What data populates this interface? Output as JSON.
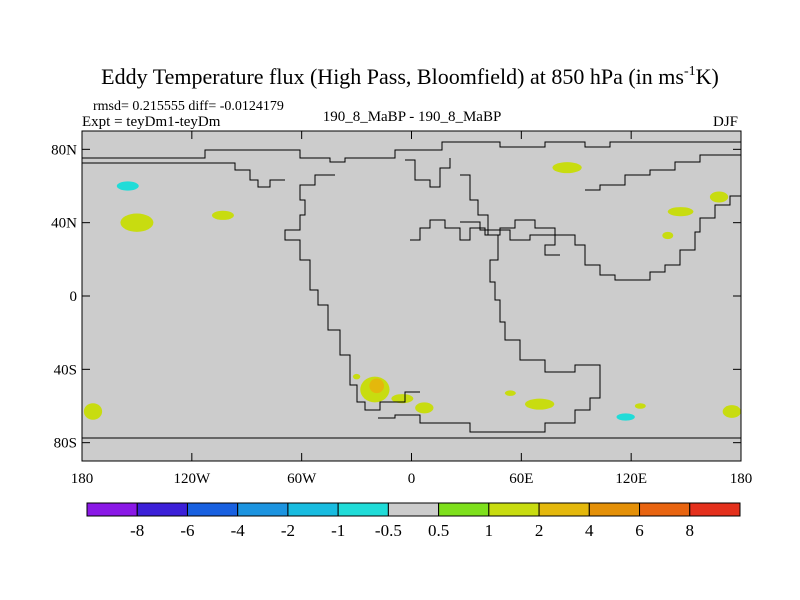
{
  "chart_data": {
    "type": "heatmap",
    "title": "Eddy Temperature flux (High Pass, Bloomfield) at 850 hPa (in ms",
    "title_sup": "-1",
    "title_end": "K)",
    "stats_text": "rmsd= 0.215555 diff= -0.0124179",
    "expt_text": "Expt = teyDm1-teyDm",
    "center_text": "190_8_MaBP - 190_8_MaBP",
    "season": "DJF",
    "x_range": [
      -180,
      180
    ],
    "y_range": [
      -90,
      90
    ],
    "x_ticks": [
      {
        "value": -180,
        "label": "180"
      },
      {
        "value": -120,
        "label": "120W"
      },
      {
        "value": -60,
        "label": "60W"
      },
      {
        "value": 0,
        "label": "0"
      },
      {
        "value": 60,
        "label": "60E"
      },
      {
        "value": 120,
        "label": "120E"
      },
      {
        "value": 180,
        "label": "180"
      }
    ],
    "y_ticks": [
      {
        "value": 80,
        "label": "80N"
      },
      {
        "value": 40,
        "label": "40N"
      },
      {
        "value": 0,
        "label": "0"
      },
      {
        "value": -40,
        "label": "40S"
      },
      {
        "value": -80,
        "label": "80S"
      }
    ],
    "colorbar": {
      "colors": [
        "#8a18e6",
        "#3c20d8",
        "#1860e0",
        "#1c94e0",
        "#18bce0",
        "#20dcd8",
        "#cccccc",
        "#7ee01c",
        "#c8dc10",
        "#e4b80c",
        "#e49008",
        "#e86410",
        "#e4301c"
      ],
      "labels": [
        "-8",
        "-6",
        "-4",
        "-2",
        "-1",
        "-0.5",
        "0.5",
        "1",
        "2",
        "4",
        "6",
        "8"
      ]
    },
    "features": [
      {
        "lon": -159,
        "lat": 60,
        "rx": 16,
        "ry": 4,
        "level": -0.5
      },
      {
        "lon": -155,
        "lat": 60,
        "rx": 6,
        "ry": 2.5,
        "level": -1
      },
      {
        "lon": -150,
        "lat": 40,
        "rx": 9,
        "ry": 5,
        "level": 1
      },
      {
        "lon": -103,
        "lat": 44,
        "rx": 6,
        "ry": 2.5,
        "level": 1
      },
      {
        "lon": -64,
        "lat": 61,
        "rx": 5,
        "ry": 2,
        "level": -0.5
      },
      {
        "lon": -5,
        "lat": 49,
        "rx": 3,
        "ry": 2,
        "level": -0.5
      },
      {
        "lon": 25,
        "lat": 51,
        "rx": 9,
        "ry": 6,
        "level": -0.5
      },
      {
        "lon": 48,
        "lat": 41,
        "rx": 14,
        "ry": 6,
        "level": -0.5
      },
      {
        "lon": 65,
        "lat": 35,
        "rx": 9,
        "ry": 4,
        "level": -0.5
      },
      {
        "lon": 105,
        "lat": 40,
        "rx": 7,
        "ry": 4,
        "level": -0.5
      },
      {
        "lon": 85,
        "lat": 70,
        "rx": 8,
        "ry": 3,
        "level": 1
      },
      {
        "lon": 147,
        "lat": 46,
        "rx": 7,
        "ry": 2.5,
        "level": 1
      },
      {
        "lon": 168,
        "lat": 54,
        "rx": 5,
        "ry": 3,
        "level": 1
      },
      {
        "lon": 140,
        "lat": 33,
        "rx": 3,
        "ry": 2,
        "level": 1
      },
      {
        "lon": -30,
        "lat": -33,
        "rx": 4,
        "ry": 3,
        "level": -0.5
      },
      {
        "lon": -17,
        "lat": -30,
        "rx": 2,
        "ry": 1.5,
        "level": -0.5
      },
      {
        "lon": 20,
        "lat": -31,
        "rx": 6,
        "ry": 4,
        "level": -0.5
      },
      {
        "lon": 27,
        "lat": -42,
        "rx": 5,
        "ry": 6,
        "level": -0.5
      },
      {
        "lon": -20,
        "lat": -51,
        "rx": 8,
        "ry": 7,
        "level": 1
      },
      {
        "lon": -19,
        "lat": -49,
        "rx": 4,
        "ry": 4,
        "level": 2
      },
      {
        "lon": -30,
        "lat": -44,
        "rx": 2,
        "ry": 1.5,
        "level": 1
      },
      {
        "lon": -5,
        "lat": -56,
        "rx": 6,
        "ry": 2.5,
        "level": 1
      },
      {
        "lon": 7,
        "lat": -61,
        "rx": 5,
        "ry": 3,
        "level": 1
      },
      {
        "lon": 70,
        "lat": -59,
        "rx": 8,
        "ry": 3,
        "level": 1
      },
      {
        "lon": 54,
        "lat": -53,
        "rx": 3,
        "ry": 1.5,
        "level": 1
      },
      {
        "lon": 98,
        "lat": -56,
        "rx": 5,
        "ry": 1.5,
        "level": -0.5
      },
      {
        "lon": 120,
        "lat": -67,
        "rx": 17,
        "ry": 4.5,
        "level": -0.5
      },
      {
        "lon": 117,
        "lat": -66,
        "rx": 5,
        "ry": 2,
        "level": -1
      },
      {
        "lon": 125,
        "lat": -60,
        "rx": 3,
        "ry": 1.5,
        "level": 1
      },
      {
        "lon": 175,
        "lat": -63,
        "rx": 5,
        "ry": 3.5,
        "level": 1
      },
      {
        "lon": -174,
        "lat": -63,
        "rx": 5,
        "ry": 4.5,
        "level": 1
      }
    ]
  }
}
